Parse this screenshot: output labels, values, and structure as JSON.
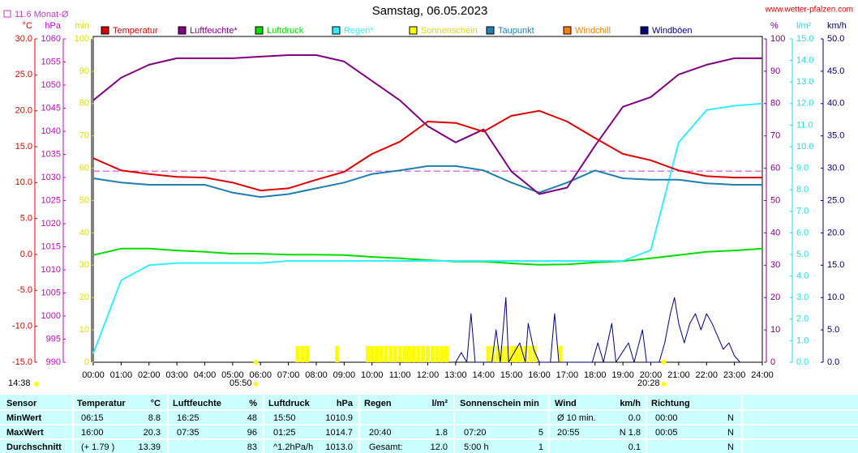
{
  "chart_data": {
    "type": "line",
    "title": "Samstag, 06.05.2023",
    "source": "www.wetter-pfalzen.com",
    "reference": {
      "label": "11.6 Monat-Ø",
      "value": 11.6,
      "axis": "°C",
      "color": "#cc33cc"
    },
    "sun": {
      "duration": "14:38",
      "sunrise": "05:50",
      "sunset": "20:28"
    },
    "axes": [
      {
        "name": "°C",
        "side": "left",
        "color": "#dd0000",
        "lim": [
          -15,
          30
        ],
        "ticks": [
          {
            "value": -15,
            "label": "-15.0"
          },
          {
            "value": -10,
            "label": "-10.0"
          },
          {
            "value": -5,
            "label": "-5.0"
          },
          {
            "value": 0,
            "label": "0.0"
          },
          {
            "value": 5,
            "label": "5.0"
          },
          {
            "value": 10,
            "label": "10.0"
          },
          {
            "value": 15,
            "label": "15.0"
          },
          {
            "value": 20,
            "label": "20.0"
          },
          {
            "value": 25,
            "label": "25.0"
          },
          {
            "value": 30,
            "label": "30.0"
          }
        ]
      },
      {
        "name": "hPa",
        "side": "left",
        "color": "#cc00cc",
        "lim": [
          990,
          1060
        ],
        "ticks": [
          990,
          995,
          1000,
          1005,
          1010,
          1015,
          1020,
          1025,
          1030,
          1035,
          1040,
          1045,
          1050,
          1055,
          1060
        ]
      },
      {
        "name": "min",
        "side": "left",
        "color": "#dddd00",
        "lim": [
          0,
          100
        ],
        "ticks": [
          0,
          10,
          20,
          30,
          40,
          50,
          60,
          70,
          80,
          90,
          100
        ]
      },
      {
        "name": "%",
        "side": "right",
        "color": "#800080",
        "lim": [
          0,
          100
        ],
        "ticks": [
          0,
          10,
          20,
          30,
          40,
          50,
          60,
          70,
          80,
          90,
          100
        ]
      },
      {
        "name": "l/m²",
        "side": "right",
        "color": "#22dddd",
        "lim": [
          0,
          15
        ],
        "ticks": [
          {
            "value": 0,
            "label": "0.0"
          },
          {
            "value": 1,
            "label": "1.0"
          },
          {
            "value": 2,
            "label": "2.0"
          },
          {
            "value": 3,
            "label": "3.0"
          },
          {
            "value": 4,
            "label": "4.0"
          },
          {
            "value": 5,
            "label": "5.0"
          },
          {
            "value": 6,
            "label": "6.0"
          },
          {
            "value": 7,
            "label": "7.0"
          },
          {
            "value": 8,
            "label": "8.0"
          },
          {
            "value": 9,
            "label": "9.0"
          },
          {
            "value": 10,
            "label": "10.0"
          },
          {
            "value": 11,
            "label": "11.0"
          },
          {
            "value": 12,
            "label": "12.0"
          },
          {
            "value": 13,
            "label": "13.0"
          },
          {
            "value": 14,
            "label": "14.0"
          },
          {
            "value": 15,
            "label": "15.0"
          }
        ]
      },
      {
        "name": "km/h",
        "side": "right",
        "color": "#000066",
        "lim": [
          0,
          50
        ],
        "ticks": [
          {
            "value": 0,
            "label": "0.0"
          },
          {
            "value": 5,
            "label": "5.0"
          },
          {
            "value": 10,
            "label": "10.0"
          },
          {
            "value": 15,
            "label": "15.0"
          },
          {
            "value": 20,
            "label": "20.0"
          },
          {
            "value": 25,
            "label": "25.0"
          },
          {
            "value": 30,
            "label": "30.0"
          },
          {
            "value": 35,
            "label": "35.0"
          },
          {
            "value": 40,
            "label": "40.0"
          },
          {
            "value": 45,
            "label": "45.0"
          },
          {
            "value": 50,
            "label": "50.0"
          }
        ]
      }
    ],
    "categories": [
      "00:00",
      "01:00",
      "02:00",
      "03:00",
      "04:00",
      "05:00",
      "06:00",
      "07:00",
      "08:00",
      "09:00",
      "10:00",
      "11:00",
      "12:00",
      "13:00",
      "14:00",
      "15:00",
      "16:00",
      "17:00",
      "18:00",
      "19:00",
      "20:00",
      "21:00",
      "22:00",
      "23:00",
      "24:00"
    ],
    "xlim": [
      0,
      24
    ],
    "series": [
      {
        "name": "Temperatur",
        "color": "#dd0000",
        "axis": "°C",
        "values": [
          13.4,
          11.7,
          11.2,
          10.8,
          10.7,
          10.0,
          8.9,
          9.2,
          10.4,
          11.5,
          14.0,
          15.7,
          18.5,
          18.3,
          17.1,
          19.3,
          20.0,
          18.5,
          16.2,
          14.0,
          13.1,
          11.7,
          10.9,
          10.7,
          10.7
        ]
      },
      {
        "name": "Luftfeuchte*",
        "color": "#800080",
        "axis": "%",
        "values": [
          81,
          88,
          92,
          94,
          94,
          94,
          94.5,
          95,
          95,
          93,
          87,
          81,
          73,
          68,
          72,
          59,
          52,
          54,
          67,
          79,
          82,
          89,
          92,
          94,
          94
        ]
      },
      {
        "name": "Luftdruck",
        "color": "#00dd00",
        "axis": "hPa",
        "values": [
          1013.2,
          1014.6,
          1014.6,
          1014.2,
          1013.9,
          1013.5,
          1013.5,
          1013.3,
          1013.3,
          1013.2,
          1012.8,
          1012.5,
          1012.1,
          1011.8,
          1011.8,
          1011.4,
          1011.1,
          1011.2,
          1011.6,
          1011.9,
          1012.5,
          1013.2,
          1013.9,
          1014.2,
          1014.6
        ]
      },
      {
        "name": "Regen*",
        "color": "#33eeff",
        "axis": "l/m²",
        "values": [
          0.4,
          3.8,
          4.5,
          4.6,
          4.6,
          4.6,
          4.6,
          4.7,
          4.7,
          4.7,
          4.7,
          4.7,
          4.7,
          4.7,
          4.7,
          4.7,
          4.7,
          4.7,
          4.7,
          4.7,
          5.2,
          10.2,
          11.7,
          11.9,
          12.0
        ]
      },
      {
        "name": "Sonnenschein",
        "color": "#ffff00",
        "axis": "min",
        "type": "bar",
        "x": [
          7.33,
          7.5,
          7.67,
          8.75,
          9.85,
          10.0,
          10.17,
          10.33,
          10.5,
          10.67,
          10.83,
          11.0,
          11.17,
          11.33,
          11.5,
          11.67,
          11.83,
          12.0,
          12.17,
          12.33,
          12.5,
          12.67,
          14.17,
          14.33,
          14.5,
          14.67,
          14.83,
          15.0,
          15.17,
          15.33,
          15.5,
          15.67,
          15.83,
          16.75
        ],
        "values": [
          5,
          5,
          5,
          5,
          5,
          5,
          5,
          5,
          5,
          5,
          5,
          5,
          5,
          5,
          5,
          5,
          5,
          5,
          5,
          5,
          5,
          5,
          5,
          5,
          5,
          5,
          5,
          5,
          5,
          5,
          5,
          5,
          5,
          5
        ]
      },
      {
        "name": "Taupunkt",
        "color": "#1e7fb0",
        "axis": "°C",
        "values": [
          10.6,
          10.0,
          9.7,
          9.7,
          9.7,
          8.6,
          8.0,
          8.4,
          9.2,
          10.0,
          11.2,
          11.7,
          12.3,
          12.3,
          11.7,
          10.0,
          8.6,
          10.0,
          11.7,
          10.6,
          10.4,
          10.4,
          9.9,
          9.7,
          9.7
        ]
      },
      {
        "name": "Windchill",
        "color": "#ff8000",
        "axis": "°C"
      },
      {
        "name": "Windböen",
        "color": "#000080",
        "axis": "km/h",
        "x": [
          13.0,
          13.2,
          13.4,
          13.55,
          13.7,
          14.3,
          14.45,
          14.6,
          14.8,
          14.9,
          15.3,
          15.5,
          15.6,
          15.8,
          16.0,
          16.4,
          16.55,
          16.7,
          17.9,
          18.1,
          18.3,
          18.6,
          18.75,
          19.2,
          19.4,
          19.7,
          19.85,
          20.3,
          20.5,
          20.7,
          20.85,
          21.0,
          21.2,
          21.4,
          21.6,
          21.8,
          22.0,
          22.2,
          22.4,
          22.6,
          22.8,
          23.0,
          23.2
        ],
        "values": [
          0,
          1.5,
          0,
          7.5,
          0,
          0,
          5,
          0,
          10,
          0,
          3,
          0,
          6,
          2,
          0,
          0,
          7.5,
          0,
          0,
          3,
          0,
          6,
          0,
          3,
          0,
          5,
          0,
          0,
          3,
          7.5,
          10,
          6,
          3,
          6,
          7.5,
          5,
          7.5,
          6,
          4,
          2,
          3,
          1,
          0
        ]
      }
    ]
  },
  "table": {
    "header": [
      "Sensor",
      "Temperatur",
      "°C",
      "Luftfeuchte",
      "%",
      "Luftdruck",
      "hPa",
      "Regen",
      "l/m²",
      "Sonnenschein min",
      "Wind",
      "km/h",
      "Richtung"
    ],
    "rows": [
      [
        "MinWert",
        "06:15",
        "8.8",
        "16:25",
        "48",
        "15:50",
        "1010.9",
        null,
        null,
        null,
        null,
        "Ø 10 min.",
        "0.0",
        "00:00",
        "N"
      ],
      [
        "MaxWert",
        "16:00",
        "20.3",
        "07:35",
        "96",
        "01:25",
        "1014.7",
        "20:40",
        "1.8",
        "07:20",
        "5",
        "20:55",
        "N 1.8",
        "00:05",
        "N"
      ],
      [
        "Durchschnitt",
        "(+ 1.79 )",
        "13.39",
        null,
        "83",
        "^1.2hPa/h",
        "1013.0",
        "Gesamt:",
        "12.0",
        "5:00 h",
        "1",
        null,
        "0.1",
        null,
        "N"
      ]
    ]
  }
}
